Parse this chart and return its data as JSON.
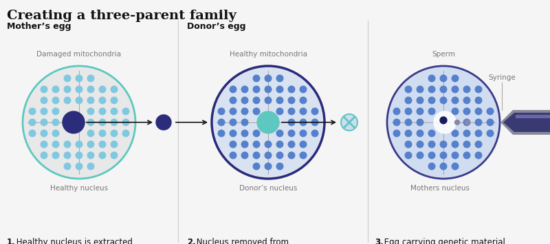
{
  "title": "Creating a three-parent family",
  "bg_color": "#f5f5f5",
  "panel1_label": "Mother’s egg",
  "panel2_label": "Donor’s egg",
  "egg1_fill": "#e8e8e8",
  "egg1_border": "#5cc8c0",
  "egg2_fill": "#d8e2f0",
  "egg2_border": "#2a2a7a",
  "egg3_fill": "#d0dcf0",
  "egg3_border": "#3a3a8a",
  "mito1_color": "#80c8e0",
  "mito2_color": "#5580cc",
  "mito3_color": "#5580cc",
  "nucleus1_color": "#2c2c7c",
  "nucleus2_color": "#5ec8c0",
  "cross_color": "#5ec8c0",
  "arrow_color": "#111111",
  "guideline_color": "#aaaaaa",
  "syringe_needle_color": "#999aaa",
  "syringe_outer_color": "#888899",
  "syringe_body_color": "#3a3a72",
  "syringe_highlight": "#aaaacc",
  "divider_color": "#cccccc",
  "text_label_color": "#777777",
  "caption_color": "#111111",
  "title_color": "#111111",
  "label_damaged": "Damaged mitochondria",
  "label_healthy_mito": "Healthy mitochondria",
  "label_sperm": "Sperm",
  "label_syringe": "Syringe",
  "label_nucleus1": "Healthy nucleus",
  "label_nucleus2": "Donor’s nucleus",
  "label_nucleus3": "Mothers nucleus",
  "caption1_bold": "1.",
  "caption1_rest": " Healthy nucleus is extracted\nfrom mother’s defective egg",
  "caption2_bold": "2.",
  "caption2_rest": " Nucleus removed from\nhealthy donor egg and replaced\nwith mother’s nucleus",
  "caption3_bold": "3.",
  "caption3_rest": " Egg carrying genetic material\nof two women fertilised by male\nsperm and implanted into mother"
}
